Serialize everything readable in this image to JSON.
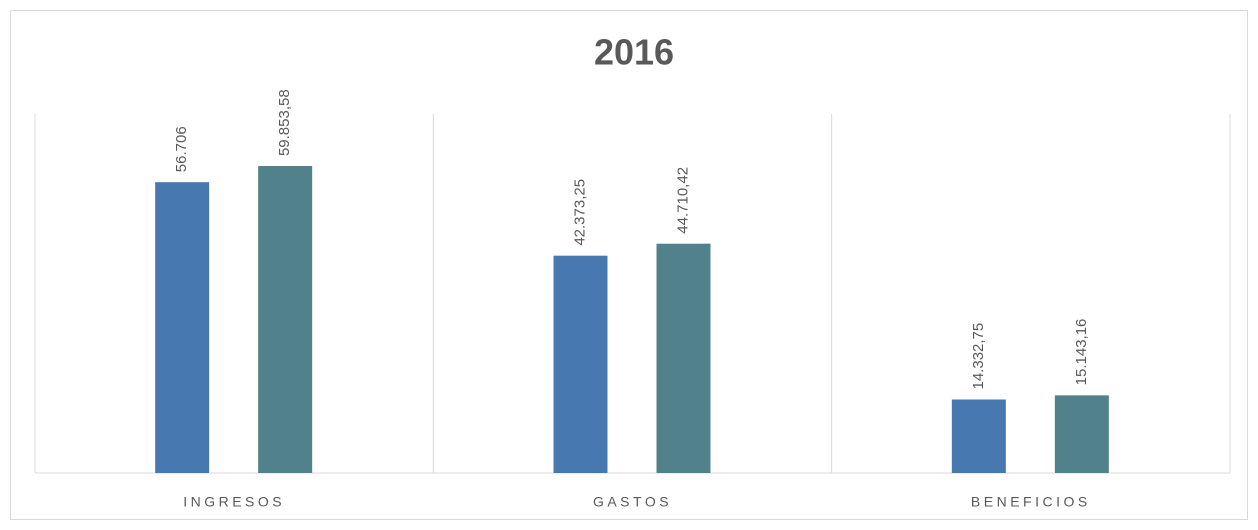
{
  "chart_data": {
    "type": "bar",
    "title": "2016",
    "categories": [
      "INGRESOS",
      "GASTOS",
      "BENEFICIOS"
    ],
    "series": [
      {
        "color": "#4878b0",
        "values": [
          56706,
          42373.25,
          14332.75
        ],
        "value_labels": [
          "56.706",
          "42.373,25",
          "14.332,75"
        ]
      },
      {
        "color": "#51818a",
        "values": [
          59853.58,
          44710.42,
          15143.16
        ],
        "value_labels": [
          "59.853,58",
          "44.710,42",
          "15.143,16"
        ]
      }
    ],
    "ylim": [
      0,
      70000
    ]
  }
}
